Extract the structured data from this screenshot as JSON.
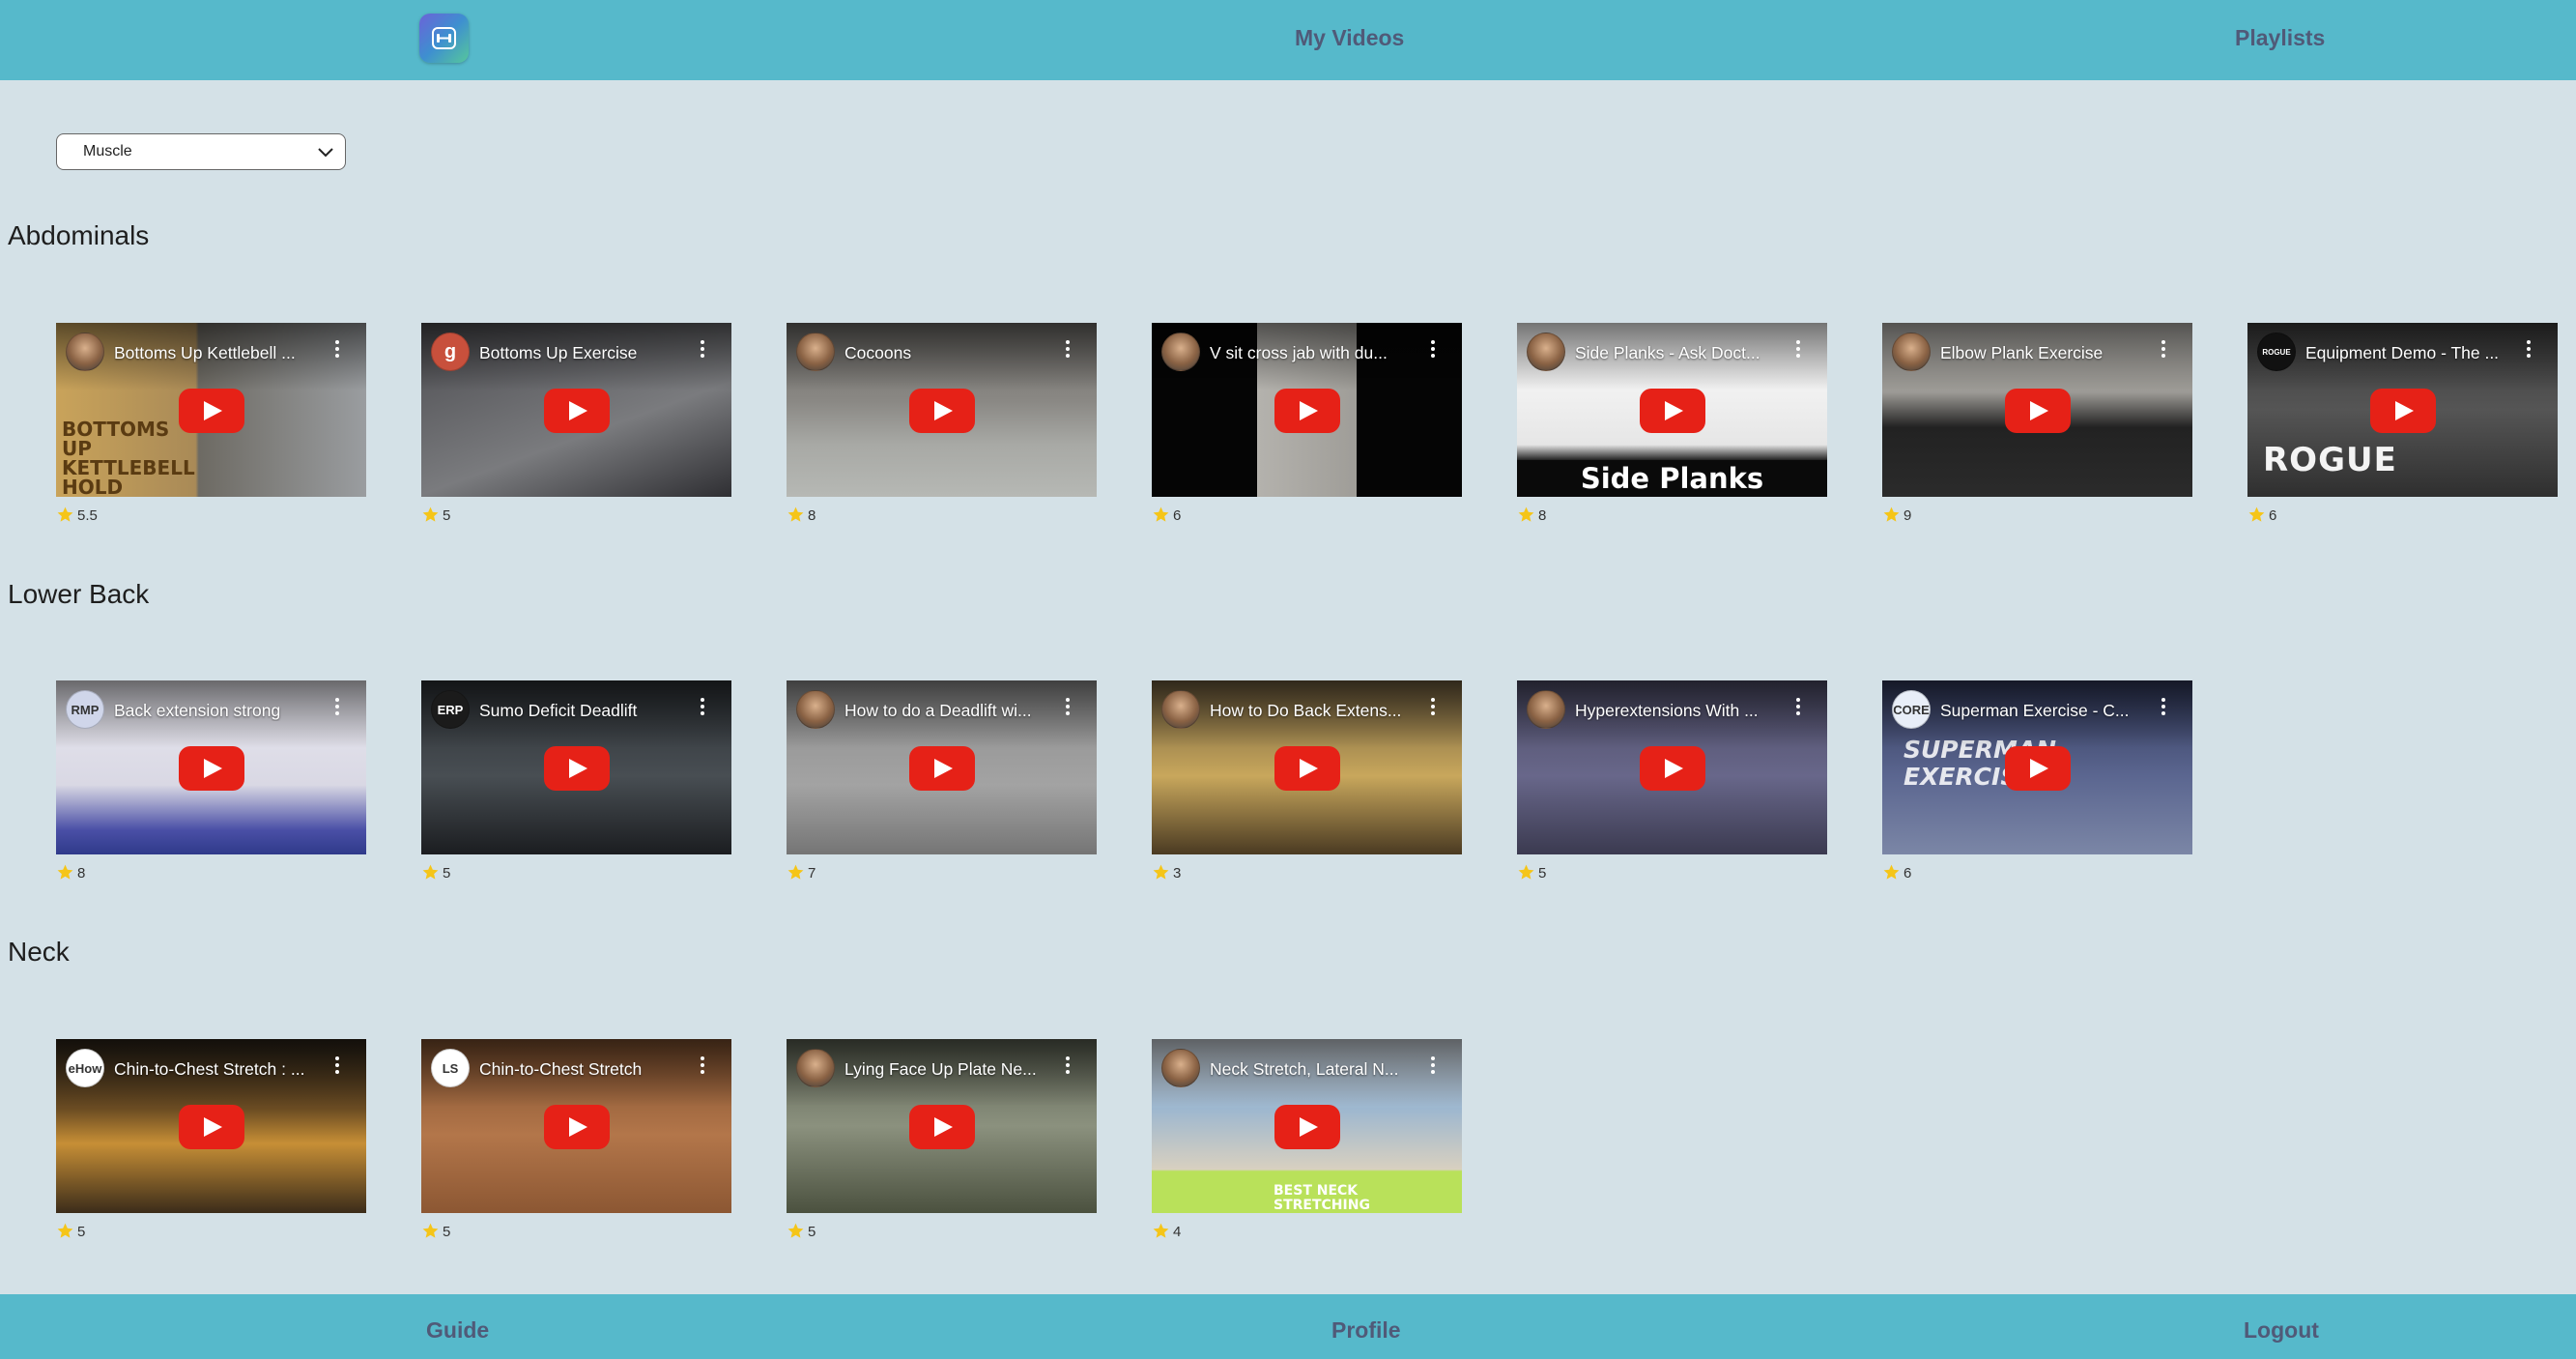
{
  "header": {
    "logo_icon": "dumbbell-icon",
    "nav": [
      "My Videos",
      "Playlists"
    ]
  },
  "filter": {
    "selected": "Muscle"
  },
  "sections": [
    {
      "title": "Abdominals",
      "videos": [
        {
          "title": "Bottoms Up Kettlebell ...",
          "rating": "5.5",
          "caption": "BOTTOMS UP KETTLEBELL HOLD"
        },
        {
          "title": "Bottoms Up Exercise",
          "rating": "5",
          "channel": "g"
        },
        {
          "title": "Cocoons",
          "rating": "8"
        },
        {
          "title": "V sit cross jab with du...",
          "rating": "6"
        },
        {
          "title": "Side Planks - Ask Doct...",
          "rating": "8",
          "caption": "Side Planks"
        },
        {
          "title": "Elbow Plank Exercise",
          "rating": "9"
        },
        {
          "title": "Equipment Demo - The ...",
          "rating": "6",
          "channel": "ROGUE",
          "caption": "ROGUE"
        }
      ]
    },
    {
      "title": "Lower Back",
      "videos": [
        {
          "title": "Back extension strong",
          "rating": "8",
          "channel": "RMP"
        },
        {
          "title": "Sumo Deficit Deadlift",
          "rating": "5",
          "channel": "ERP"
        },
        {
          "title": "How to do a Deadlift wi...",
          "rating": "7"
        },
        {
          "title": "How to Do Back Extens...",
          "rating": "3"
        },
        {
          "title": "Hyperextensions With ...",
          "rating": "5"
        },
        {
          "title": "Superman Exercise - C...",
          "rating": "6",
          "channel": "CORE",
          "caption": "SUPERMAN EXERCISE"
        }
      ]
    },
    {
      "title": "Neck",
      "videos": [
        {
          "title": "Chin-to-Chest Stretch : ...",
          "rating": "5",
          "channel": "eHow"
        },
        {
          "title": "Chin-to-Chest Stretch",
          "rating": "5",
          "channel": "LS"
        },
        {
          "title": "Lying Face Up Plate Ne...",
          "rating": "5"
        },
        {
          "title": "Neck Stretch, Lateral N...",
          "rating": "4",
          "caption": "BEST NECK STRETCHING EXERCISE..."
        }
      ]
    }
  ],
  "footer": {
    "nav": [
      "Guide",
      "Profile",
      "Logout"
    ]
  },
  "colors": {
    "bar": "#56b9cb",
    "background": "#d4e1e7",
    "nav_text": "#505a78",
    "play": "#e62117",
    "star": "#f5c518"
  }
}
